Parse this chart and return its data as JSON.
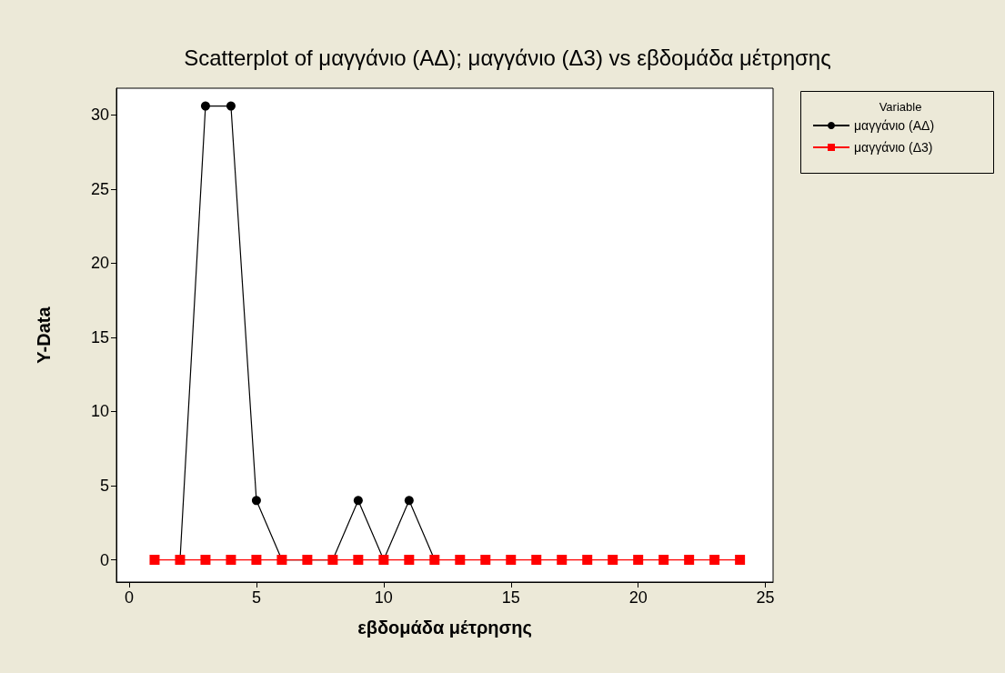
{
  "chart_data": {
    "type": "line",
    "title": "Scatterplot of μαγγάνιο (ΑΔ); μαγγάνιο (Δ3) vs εβδομάδα μέτρησης",
    "xlabel": "εβδομάδα μέτρησης",
    "ylabel": "Y-Data",
    "legend_title": "Variable",
    "series": [
      {
        "name": "μαγγάνιο (ΑΔ)",
        "color": "#000000",
        "marker": "circle",
        "x": [
          2,
          3,
          4,
          5,
          6,
          7,
          8,
          9,
          10,
          11,
          12
        ],
        "values": [
          0,
          30.6,
          30.6,
          4,
          0,
          0,
          0,
          4,
          0,
          4,
          0
        ]
      },
      {
        "name": "μαγγάνιο (Δ3)",
        "color": "#ff0000",
        "marker": "square",
        "x": [
          1,
          2,
          3,
          4,
          5,
          6,
          7,
          8,
          9,
          10,
          11,
          12,
          13,
          14,
          15,
          16,
          17,
          18,
          19,
          20,
          21,
          22,
          23,
          24
        ],
        "values": [
          0,
          0,
          0,
          0,
          0,
          0,
          0,
          0,
          0,
          0,
          0,
          0,
          0,
          0,
          0,
          0,
          0,
          0,
          0,
          0,
          0,
          0,
          0,
          0
        ]
      }
    ],
    "xlim": [
      -0.5,
      25.3
    ],
    "xticks": [
      0,
      5,
      10,
      15,
      20,
      25
    ],
    "ylim": [
      -1.5,
      31.8
    ],
    "yticks": [
      0,
      5,
      10,
      15,
      20,
      25,
      30
    ],
    "grid": false,
    "legend": "top right",
    "line_style": "solid"
  }
}
